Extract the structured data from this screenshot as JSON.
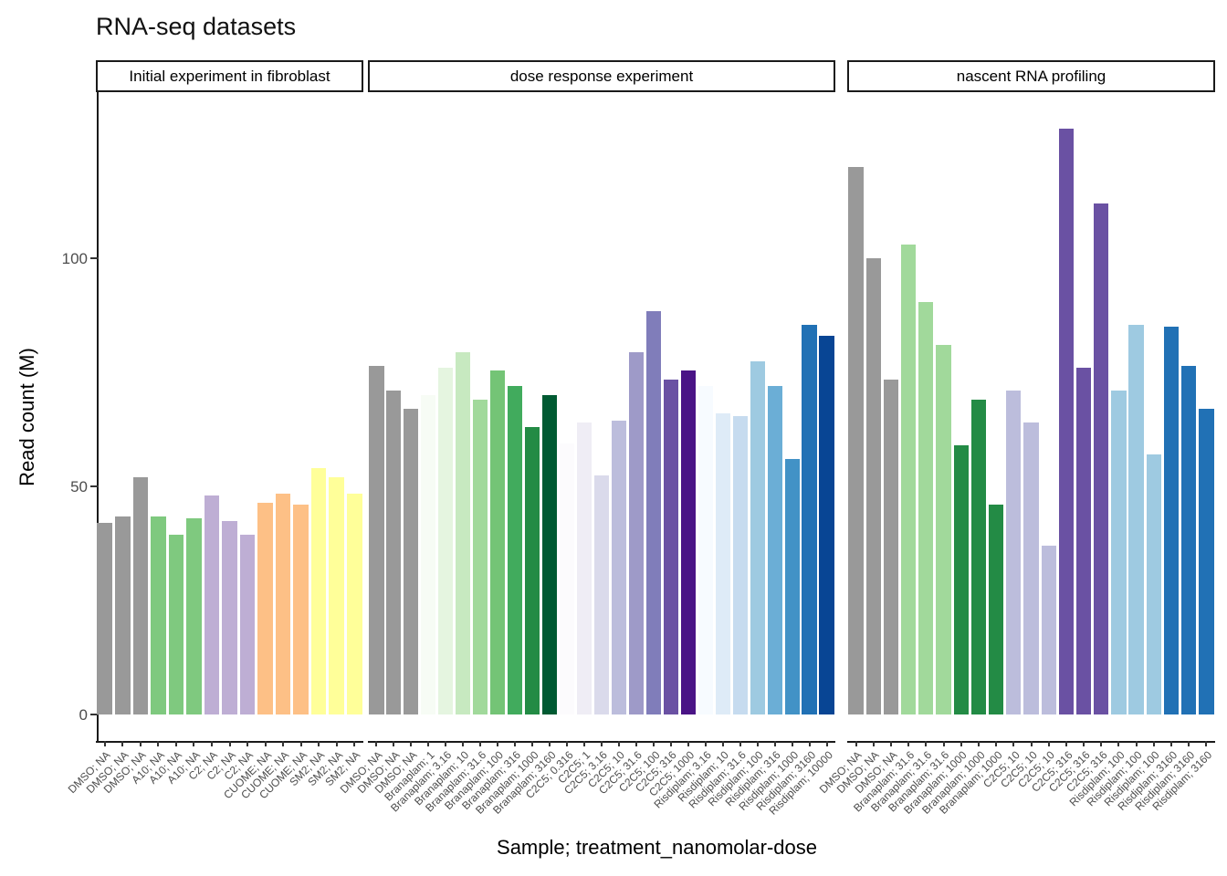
{
  "title": "RNA-seq datasets",
  "chart_data": {
    "type": "bar",
    "title": "RNA-seq datasets",
    "xlabel": "Sample; treatment_nanomolar-dose",
    "ylabel": "Read count (M)",
    "yticks": [
      0,
      50,
      100
    ],
    "ylim": [
      0,
      135
    ],
    "grid": false,
    "legend": false,
    "facets": [
      {
        "label": "Initial experiment in fibroblast",
        "bars": [
          {
            "label": "DMSO; NA",
            "value": 42,
            "color": "#999999"
          },
          {
            "label": "DMSO; NA",
            "value": 43.5,
            "color": "#999999"
          },
          {
            "label": "DMSO; NA",
            "value": 52,
            "color": "#999999"
          },
          {
            "label": "A10; NA",
            "value": 43.5,
            "color": "#7FC97F"
          },
          {
            "label": "A10; NA",
            "value": 39.5,
            "color": "#7FC97F"
          },
          {
            "label": "A10; NA",
            "value": 43,
            "color": "#7FC97F"
          },
          {
            "label": "C2; NA",
            "value": 48,
            "color": "#BEAED4"
          },
          {
            "label": "C2; NA",
            "value": 42.5,
            "color": "#BEAED4"
          },
          {
            "label": "C2; NA",
            "value": 39.5,
            "color": "#BEAED4"
          },
          {
            "label": "CUOME; NA",
            "value": 46.5,
            "color": "#FDC086"
          },
          {
            "label": "CUOME; NA",
            "value": 48.5,
            "color": "#FDC086"
          },
          {
            "label": "CUOME; NA",
            "value": 46,
            "color": "#FDC086"
          },
          {
            "label": "SM2; NA",
            "value": 54,
            "color": "#FFFF99"
          },
          {
            "label": "SM2; NA",
            "value": 52,
            "color": "#FFFF99"
          },
          {
            "label": "SM2; NA",
            "value": 48.5,
            "color": "#FFFF99"
          }
        ]
      },
      {
        "label": "dose response experiment",
        "bars": [
          {
            "label": "DMSO; NA",
            "value": 76.5,
            "color": "#999999"
          },
          {
            "label": "DMSO; NA",
            "value": 71,
            "color": "#999999"
          },
          {
            "label": "DMSO; NA",
            "value": 67,
            "color": "#999999"
          },
          {
            "label": "Branaplam; 1",
            "value": 70,
            "color": "#F7FCF5"
          },
          {
            "label": "Branaplam; 3.16",
            "value": 76,
            "color": "#E5F5E0"
          },
          {
            "label": "Branaplam; 10",
            "value": 79.5,
            "color": "#C7E9C0"
          },
          {
            "label": "Branaplam; 31.6",
            "value": 69,
            "color": "#A1D99B"
          },
          {
            "label": "Branaplam; 100",
            "value": 75.5,
            "color": "#74C476"
          },
          {
            "label": "Branaplam; 316",
            "value": 72,
            "color": "#41AB5D"
          },
          {
            "label": "Branaplam; 1000",
            "value": 63,
            "color": "#238B45"
          },
          {
            "label": "Branaplam; 3160",
            "value": 70,
            "color": "#005A32"
          },
          {
            "label": "C2C5; 0.316",
            "value": 59.5,
            "color": "#FCFBFD"
          },
          {
            "label": "C2C5; 1",
            "value": 64,
            "color": "#EFEDF5"
          },
          {
            "label": "C2C5; 3.16",
            "value": 52.5,
            "color": "#DADAEB"
          },
          {
            "label": "C2C5; 10",
            "value": 64.5,
            "color": "#BCBDDC"
          },
          {
            "label": "C2C5; 31.6",
            "value": 79.5,
            "color": "#9E9AC8"
          },
          {
            "label": "C2C5; 100",
            "value": 88.5,
            "color": "#807DBA"
          },
          {
            "label": "C2C5; 316",
            "value": 73.5,
            "color": "#6A51A3"
          },
          {
            "label": "C2C5; 1000",
            "value": 75.5,
            "color": "#4A1486"
          },
          {
            "label": "Risdiplam; 3.16",
            "value": 72,
            "color": "#F7FBFF"
          },
          {
            "label": "Risdiplam; 10",
            "value": 66,
            "color": "#DEEBF7"
          },
          {
            "label": "Risdiplam; 31.6",
            "value": 65.5,
            "color": "#C6DBEF"
          },
          {
            "label": "Risdiplam; 100",
            "value": 77.5,
            "color": "#9ECAE1"
          },
          {
            "label": "Risdiplam; 316",
            "value": 72,
            "color": "#6BAED6"
          },
          {
            "label": "Risdiplam; 1000",
            "value": 56,
            "color": "#4292C6"
          },
          {
            "label": "Risdiplam; 3160",
            "value": 85.5,
            "color": "#2171B5"
          },
          {
            "label": "Risdiplam; 10000",
            "value": 83,
            "color": "#084594"
          }
        ]
      },
      {
        "label": "nascent RNA profiling",
        "bars": [
          {
            "label": "DMSO; NA",
            "value": 120,
            "color": "#999999"
          },
          {
            "label": "DMSO; NA",
            "value": 100,
            "color": "#999999"
          },
          {
            "label": "DMSO; NA",
            "value": 73.5,
            "color": "#999999"
          },
          {
            "label": "Branaplam; 31.6",
            "value": 103,
            "color": "#A1D99B"
          },
          {
            "label": "Branaplam; 31.6",
            "value": 90.5,
            "color": "#A1D99B"
          },
          {
            "label": "Branaplam; 31.6",
            "value": 81,
            "color": "#A1D99B"
          },
          {
            "label": "Branaplam; 1000",
            "value": 59,
            "color": "#238B45"
          },
          {
            "label": "Branaplam; 1000",
            "value": 69,
            "color": "#238B45"
          },
          {
            "label": "Branaplam; 1000",
            "value": 46,
            "color": "#238B45"
          },
          {
            "label": "C2C5; 10",
            "value": 71,
            "color": "#BCBDDC"
          },
          {
            "label": "C2C5; 10",
            "value": 64,
            "color": "#BCBDDC"
          },
          {
            "label": "C2C5; 10",
            "value": 37,
            "color": "#BCBDDC"
          },
          {
            "label": "C2C5; 316",
            "value": 128.5,
            "color": "#6A51A3"
          },
          {
            "label": "C2C5; 316",
            "value": 76,
            "color": "#6A51A3"
          },
          {
            "label": "C2C5; 316",
            "value": 112,
            "color": "#6A51A3"
          },
          {
            "label": "Risdiplam; 100",
            "value": 71,
            "color": "#9ECAE1"
          },
          {
            "label": "Risdiplam; 100",
            "value": 85.5,
            "color": "#9ECAE1"
          },
          {
            "label": "Risdiplam; 100",
            "value": 57,
            "color": "#9ECAE1"
          },
          {
            "label": "Risdiplam; 3160",
            "value": 85,
            "color": "#2171B5"
          },
          {
            "label": "Risdiplam; 3160",
            "value": 76.5,
            "color": "#2171B5"
          },
          {
            "label": "Risdiplam; 3160",
            "value": 67,
            "color": "#2171B5"
          }
        ]
      }
    ]
  },
  "colors": {
    "dmso_gray": "#999999",
    "accent_palette": [
      "#7FC97F",
      "#BEAED4",
      "#FDC086",
      "#FFFF99"
    ],
    "branaplam_greens": [
      "#F7FCF5",
      "#E5F5E0",
      "#C7E9C0",
      "#A1D99B",
      "#74C476",
      "#41AB5D",
      "#238B45",
      "#005A32"
    ],
    "c2c5_purples": [
      "#FCFBFD",
      "#EFEDF5",
      "#DADAEB",
      "#BCBDDC",
      "#9E9AC8",
      "#807DBA",
      "#6A51A3",
      "#4A1486"
    ],
    "risdiplam_blues": [
      "#F7FBFF",
      "#DEEBF7",
      "#C6DBEF",
      "#9ECAE1",
      "#6BAED6",
      "#4292C6",
      "#2171B5",
      "#084594"
    ],
    "axis_text": "#4D4D4D",
    "axis_line": "#1A1A1A"
  }
}
